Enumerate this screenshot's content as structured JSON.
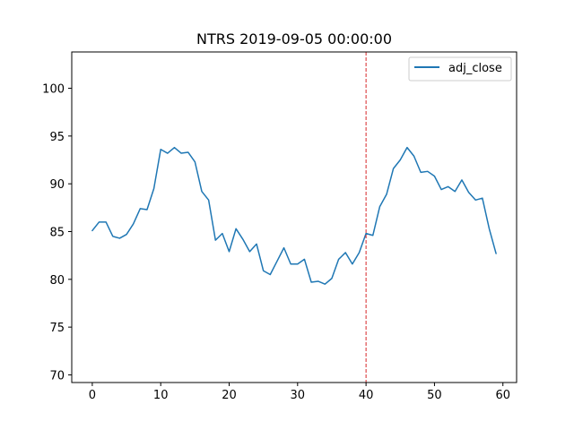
{
  "chart_data": {
    "type": "line",
    "title": "NTRS 2019-09-05 00:00:00",
    "xlabel": "",
    "ylabel": "",
    "xlim": [
      -3,
      62
    ],
    "ylim": [
      69.2,
      103.8
    ],
    "x_ticks": [
      0,
      10,
      20,
      30,
      40,
      50,
      60
    ],
    "y_ticks": [
      70,
      75,
      80,
      85,
      90,
      95,
      100
    ],
    "grid": false,
    "legend_position": "top-right",
    "vline": {
      "x": 40,
      "color": "#d62728",
      "style": "dashed"
    },
    "series": [
      {
        "name": "adj_close",
        "color": "#1f77b4",
        "x": [
          0,
          1,
          2,
          3,
          4,
          5,
          6,
          7,
          8,
          9,
          10,
          11,
          12,
          13,
          14,
          15,
          16,
          17,
          18,
          19,
          20,
          21,
          22,
          23,
          24,
          25,
          26,
          27,
          28,
          29,
          30,
          31,
          32,
          33,
          34,
          35,
          36,
          37,
          38,
          39,
          40,
          41,
          42,
          43,
          44,
          45,
          46,
          47,
          48,
          49,
          50,
          51,
          52,
          53,
          54,
          55,
          56,
          57,
          58,
          59
        ],
        "values": [
          85.1,
          86.0,
          86.0,
          84.5,
          84.3,
          84.7,
          85.8,
          87.4,
          87.3,
          89.5,
          93.6,
          93.2,
          93.8,
          93.2,
          93.3,
          92.3,
          89.2,
          88.3,
          84.1,
          84.8,
          82.9,
          85.3,
          84.2,
          82.9,
          83.7,
          80.9,
          80.5,
          81.9,
          83.3,
          81.6,
          81.6,
          82.1,
          79.7,
          79.8,
          79.5,
          80.1,
          82.1,
          82.8,
          81.6,
          82.8,
          84.8,
          84.6,
          87.6,
          88.9,
          91.6,
          92.5,
          93.8,
          92.9,
          91.2,
          91.3,
          90.8,
          89.4,
          89.7,
          89.2,
          90.4,
          89.1,
          88.3,
          88.5,
          85.3,
          82.7
        ]
      }
    ]
  }
}
